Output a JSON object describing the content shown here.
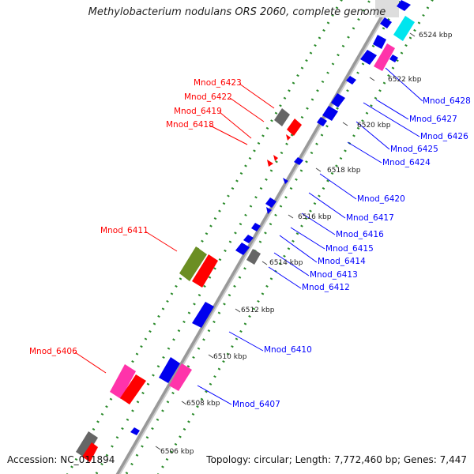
{
  "title": "Methylobacterium nodulans ORS 2060, complete genome",
  "footer": {
    "accession_label": "Accession:",
    "accession": "NC_011894",
    "topology_label": "Topology:",
    "topology": "circular",
    "length_label": "Length:",
    "length": "7,772,460 bp",
    "genes_label": "Genes:",
    "genes": "7,447"
  },
  "colors": {
    "backbone": "#888888",
    "tick_dots": "#2a8a2a",
    "label_red": "#ff0000",
    "label_blue": "#0000ff",
    "gene_red": "#ff0000",
    "gene_blue": "#0000ee",
    "gene_pink": "#ff33aa",
    "gene_gray": "#666666",
    "gene_olive": "#6b8e23",
    "gene_cyan": "#00e5ee"
  },
  "kbp_ticks": [
    "6506 kbp",
    "6508 kbp",
    "6510 kbp",
    "6512 kbp",
    "6514 kbp",
    "6516 kbp",
    "6518 kbp",
    "6520 kbp",
    "6522 kbp",
    "6524 kbp"
  ],
  "left_labels": [
    "Mnod_6423",
    "Mnod_6422",
    "Mnod_6419",
    "Mnod_6418",
    "Mnod_6411",
    "Mnod_6406"
  ],
  "right_labels": [
    "Mnod_6428",
    "Mnod_6427",
    "Mnod_6426",
    "Mnod_6425",
    "Mnod_6424",
    "Mnod_6420",
    "Mnod_6417",
    "Mnod_6416",
    "Mnod_6415",
    "Mnod_6414",
    "Mnod_6413",
    "Mnod_6412",
    "Mnod_6410",
    "Mnod_6407"
  ]
}
